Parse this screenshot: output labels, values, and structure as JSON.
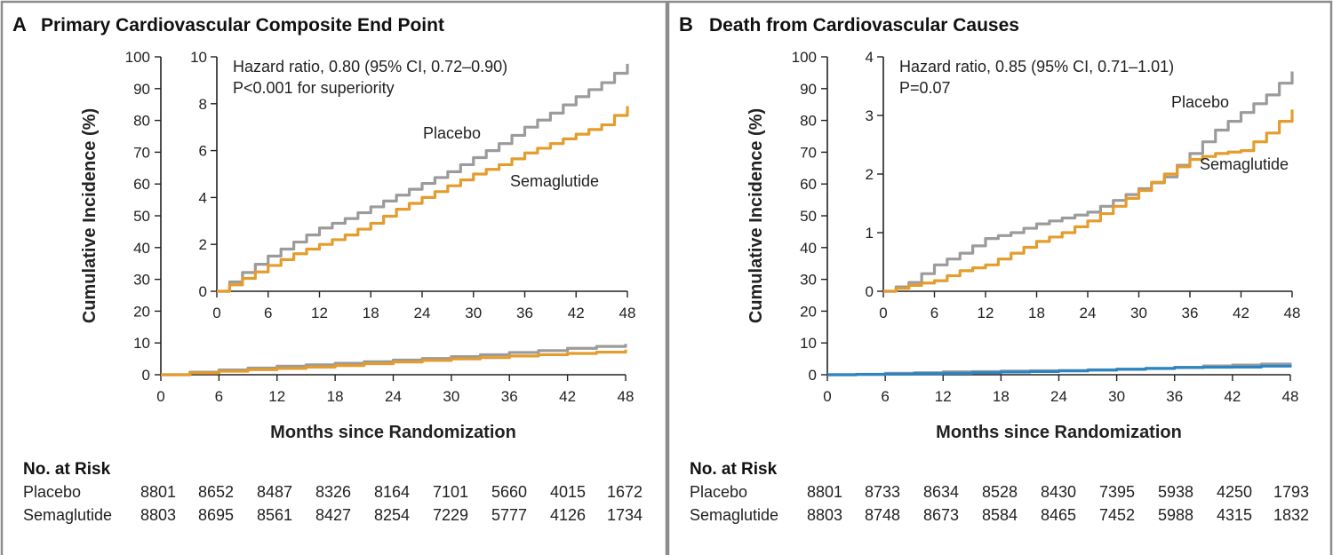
{
  "colors": {
    "placebo": "#9b9b9b",
    "semaglutide": "#e49c2c",
    "semaglutide_b_main": "#2b85c2"
  },
  "risk_table": {
    "heading": "No. at Risk",
    "rows": [
      "Placebo",
      "Semaglutide"
    ]
  },
  "chart_data": [
    {
      "type": "line",
      "panel_letter": "A",
      "title": "Primary Cardiovascular Composite End Point",
      "xlabel": "Months since Randomization",
      "ylabel": "Cumulative Incidence (%)",
      "xlim": [
        0,
        48
      ],
      "ylim": [
        0,
        100
      ],
      "xticks": [
        "0",
        "6",
        "12",
        "18",
        "24",
        "30",
        "36",
        "42",
        "48"
      ],
      "yticks": [
        "0",
        "10",
        "20",
        "30",
        "40",
        "50",
        "60",
        "70",
        "80",
        "90",
        "100"
      ],
      "inset": {
        "xlim": [
          0,
          48
        ],
        "ylim": [
          0,
          10
        ],
        "xticks": [
          "0",
          "6",
          "12",
          "18",
          "24",
          "30",
          "36",
          "42",
          "48"
        ],
        "yticks": [
          "0",
          "2",
          "4",
          "6",
          "8",
          "10"
        ]
      },
      "annotation": [
        "Hazard ratio, 0.80 (95% CI, 0.72–0.90)",
        "P<0.001 for superiority"
      ],
      "series": [
        {
          "name": "Placebo",
          "x": [
            0,
            3,
            6,
            9,
            12,
            15,
            18,
            21,
            24,
            27,
            30,
            33,
            36,
            39,
            42,
            45,
            48
          ],
          "values": [
            0,
            0.8,
            1.5,
            2.1,
            2.7,
            3.1,
            3.6,
            4.1,
            4.6,
            5.1,
            5.7,
            6.3,
            7.0,
            7.6,
            8.3,
            8.9,
            9.7
          ]
        },
        {
          "name": "Semaglutide",
          "x": [
            0,
            3,
            6,
            9,
            12,
            15,
            18,
            21,
            24,
            27,
            30,
            33,
            36,
            39,
            42,
            45,
            48
          ],
          "values": [
            0,
            0.55,
            1.1,
            1.6,
            2.0,
            2.4,
            2.9,
            3.5,
            4.0,
            4.5,
            5.0,
            5.4,
            5.9,
            6.3,
            6.7,
            7.1,
            7.9
          ]
        }
      ],
      "risk": {
        "placebo": [
          "8801",
          "8652",
          "8487",
          "8326",
          "8164",
          "7101",
          "5660",
          "4015",
          "1672"
        ],
        "semaglutide": [
          "8803",
          "8695",
          "8561",
          "8427",
          "8254",
          "7229",
          "5777",
          "4126",
          "1734"
        ]
      }
    },
    {
      "type": "line",
      "panel_letter": "B",
      "title": "Death from Cardiovascular Causes",
      "xlabel": "Months since Randomization",
      "ylabel": "Cumulative Incidence (%)",
      "xlim": [
        0,
        48
      ],
      "ylim": [
        0,
        100
      ],
      "xticks": [
        "0",
        "6",
        "12",
        "18",
        "24",
        "30",
        "36",
        "42",
        "48"
      ],
      "yticks": [
        "0",
        "10",
        "20",
        "30",
        "40",
        "50",
        "60",
        "70",
        "80",
        "90",
        "100"
      ],
      "inset": {
        "xlim": [
          0,
          48
        ],
        "ylim": [
          0,
          4
        ],
        "xticks": [
          "0",
          "6",
          "12",
          "18",
          "24",
          "30",
          "36",
          "42",
          "48"
        ],
        "yticks": [
          "0",
          "1",
          "2",
          "3",
          "4"
        ]
      },
      "annotation": [
        "Hazard ratio, 0.85 (95% CI, 0.71–1.01)",
        "P=0.07"
      ],
      "series": [
        {
          "name": "Placebo",
          "x": [
            0,
            3,
            6,
            9,
            12,
            15,
            18,
            21,
            24,
            27,
            30,
            33,
            36,
            39,
            42,
            45,
            48
          ],
          "values": [
            0,
            0.15,
            0.45,
            0.65,
            0.9,
            1.0,
            1.15,
            1.25,
            1.35,
            1.55,
            1.75,
            1.95,
            2.35,
            2.75,
            3.05,
            3.35,
            3.75
          ]
        },
        {
          "name": "Semaglutide",
          "x": [
            0,
            3,
            6,
            9,
            12,
            15,
            18,
            21,
            24,
            27,
            30,
            33,
            36,
            39,
            42,
            45,
            48
          ],
          "values": [
            0,
            0.1,
            0.18,
            0.35,
            0.45,
            0.65,
            0.85,
            1.0,
            1.2,
            1.45,
            1.72,
            2.0,
            2.25,
            2.35,
            2.4,
            2.7,
            3.1
          ]
        }
      ],
      "risk": {
        "placebo": [
          "8801",
          "8733",
          "8634",
          "8528",
          "8430",
          "7395",
          "5938",
          "4250",
          "1793"
        ],
        "semaglutide": [
          "8803",
          "8748",
          "8673",
          "8584",
          "8465",
          "7452",
          "5988",
          "4315",
          "1832"
        ]
      }
    }
  ]
}
